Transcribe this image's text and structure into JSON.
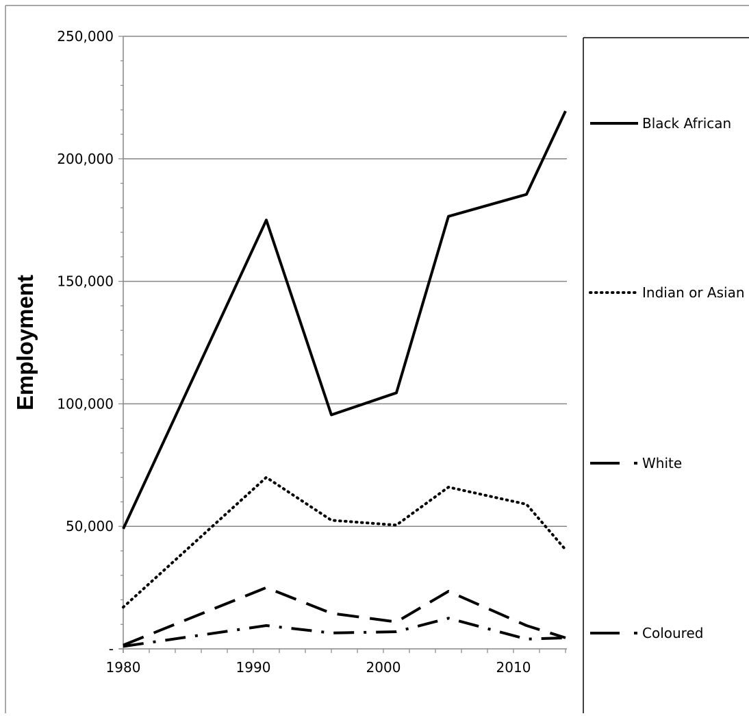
{
  "chart_data": {
    "type": "line",
    "title": "",
    "xlabel": "",
    "ylabel": "Employment",
    "xlim": [
      1980,
      2015
    ],
    "ylim": [
      0,
      250000
    ],
    "x_ticks": [
      1980,
      1990,
      2000,
      2010
    ],
    "x_tick_labels": [
      "1980",
      "1990",
      "2000",
      "2010"
    ],
    "y_ticks": [
      0,
      50000,
      100000,
      150000,
      200000,
      250000
    ],
    "y_tick_labels": [
      "-",
      "50,000",
      "100,000",
      "150,000",
      "200,000",
      "250,000"
    ],
    "grid": "horizontal",
    "legend_position": "right",
    "series": [
      {
        "name": "Black African",
        "style": "solid",
        "color": "#000000",
        "x": [
          1980,
          1991,
          1996,
          2001,
          2005,
          2011,
          2014
        ],
        "y": [
          49000,
          175000,
          95500,
          104500,
          176500,
          185500,
          219500
        ]
      },
      {
        "name": "Indian or Asian",
        "style": "dotted",
        "color": "#000000",
        "x": [
          1980,
          1991,
          1996,
          2001,
          2005,
          2011,
          2014
        ],
        "y": [
          17000,
          70000,
          52500,
          50500,
          66000,
          59000,
          40500
        ]
      },
      {
        "name": "White",
        "style": "dashed",
        "color": "#000000",
        "x": [
          1980,
          1991,
          1996,
          2001,
          2005,
          2011,
          2014
        ],
        "y": [
          1500,
          25000,
          14500,
          11000,
          23500,
          9500,
          4500
        ]
      },
      {
        "name": "Coloured",
        "style": "dash-dot",
        "color": "#000000",
        "x": [
          1980,
          1991,
          1996,
          2001,
          2005,
          2011,
          2014
        ],
        "y": [
          1000,
          9500,
          6500,
          7000,
          12500,
          4000,
          4500
        ]
      }
    ]
  }
}
